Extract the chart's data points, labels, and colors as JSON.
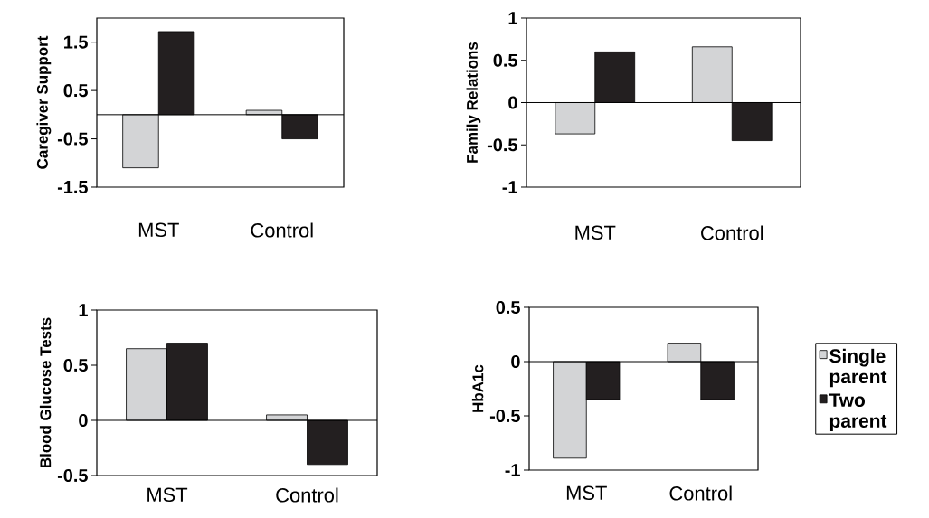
{
  "chart_data": [
    {
      "type": "bar",
      "ylabel": "Caregiver Support",
      "categories": [
        "MST",
        "Control"
      ],
      "ylim": [
        -1.5,
        2
      ],
      "yticks": [
        -1.5,
        -0.5,
        0.5,
        1.5
      ],
      "series": [
        {
          "color": "#d3d4d6",
          "values": [
            -1.1,
            0.09
          ]
        },
        {
          "color": "#231f20",
          "values": [
            1.72,
            -0.5
          ]
        }
      ]
    },
    {
      "type": "bar",
      "ylabel": "Family Relations",
      "categories": [
        "MST",
        "Control"
      ],
      "ylim": [
        -1,
        1
      ],
      "yticks": [
        -1,
        -0.5,
        0,
        0.5,
        1
      ],
      "series": [
        {
          "color": "#d3d4d6",
          "values": [
            -0.37,
            0.66
          ]
        },
        {
          "color": "#231f20",
          "values": [
            0.6,
            -0.45
          ]
        }
      ]
    },
    {
      "type": "bar",
      "ylabel": "Blood Glucose Tests",
      "categories": [
        "MST",
        "Control"
      ],
      "ylim": [
        -0.5,
        1
      ],
      "yticks": [
        -0.5,
        0,
        0.5,
        1
      ],
      "series": [
        {
          "color": "#d3d4d6",
          "values": [
            0.65,
            0.05
          ]
        },
        {
          "color": "#231f20",
          "values": [
            0.7,
            -0.4
          ]
        }
      ]
    },
    {
      "type": "bar",
      "ylabel": "HbA1c",
      "categories": [
        "MST",
        "Control"
      ],
      "ylim": [
        -1,
        0.5
      ],
      "yticks": [
        -1,
        -0.5,
        0,
        0.5
      ],
      "legend": "right",
      "series": [
        {
          "name": "Single parent",
          "color": "#d3d4d6",
          "values": [
            -0.89,
            0.17
          ]
        },
        {
          "name": "Two parent",
          "color": "#231f20",
          "values": [
            -0.35,
            -0.35
          ]
        }
      ]
    }
  ]
}
